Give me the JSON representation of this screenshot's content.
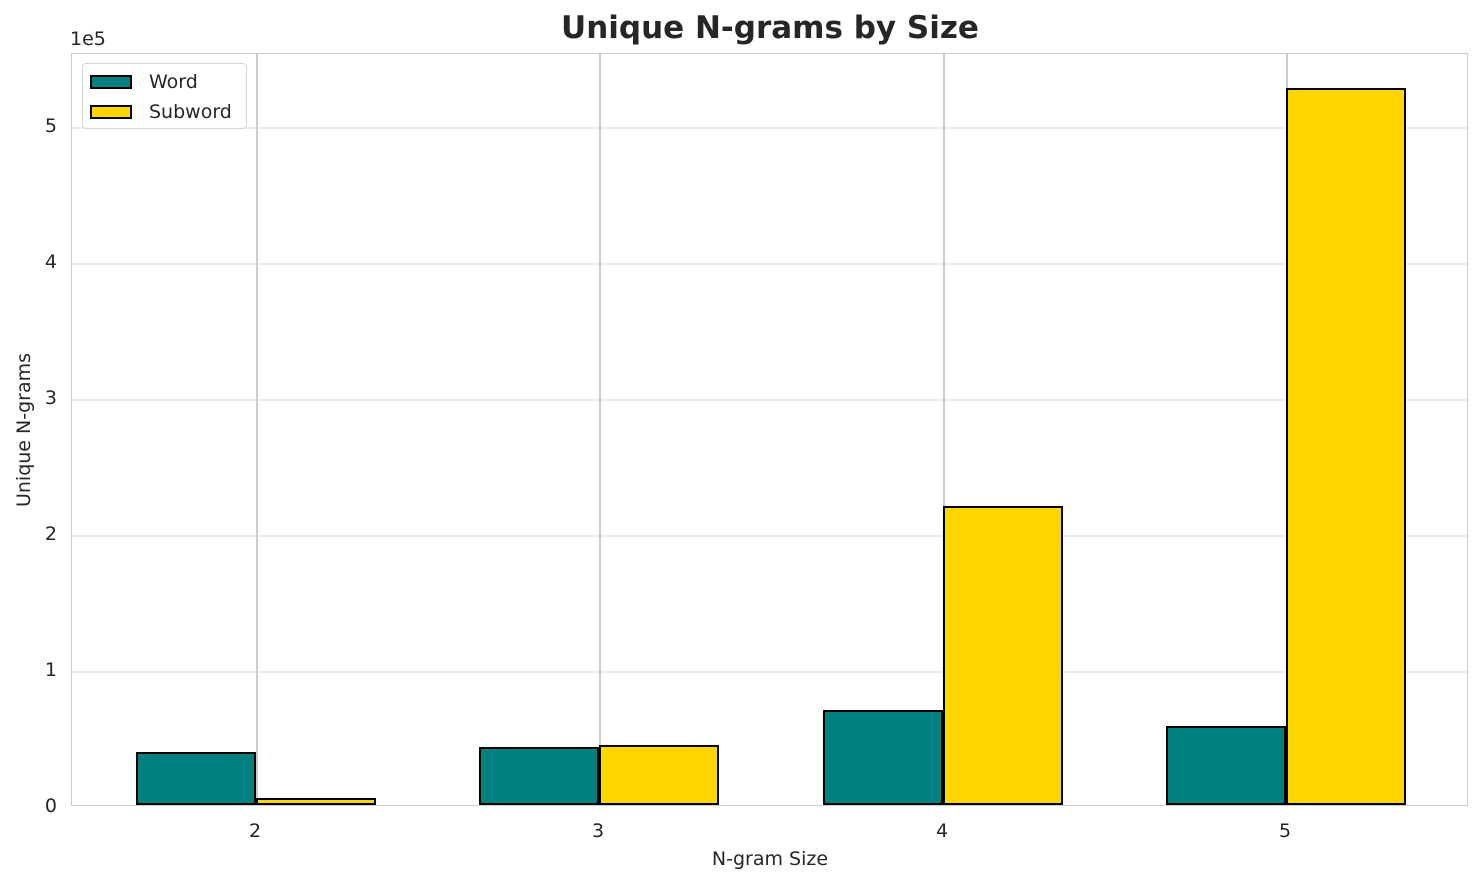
{
  "chart_data": {
    "type": "bar",
    "title": "Unique N-grams by Size",
    "xlabel": "N-gram Size",
    "ylabel": "Unique N-grams",
    "y_offset_label": "1e5",
    "categories": [
      "2",
      "3",
      "4",
      "5"
    ],
    "series": [
      {
        "name": "Word",
        "color": "#008080",
        "values": [
          39000,
          43000,
          70000,
          58000
        ]
      },
      {
        "name": "Subword",
        "color": "#FFD700",
        "values": [
          5000,
          44000,
          220000,
          527000
        ]
      }
    ],
    "ylim": [
      0,
      555000
    ],
    "yticks": [
      0,
      1,
      2,
      3,
      4,
      5
    ],
    "grid": true,
    "legend_position": "upper left"
  }
}
